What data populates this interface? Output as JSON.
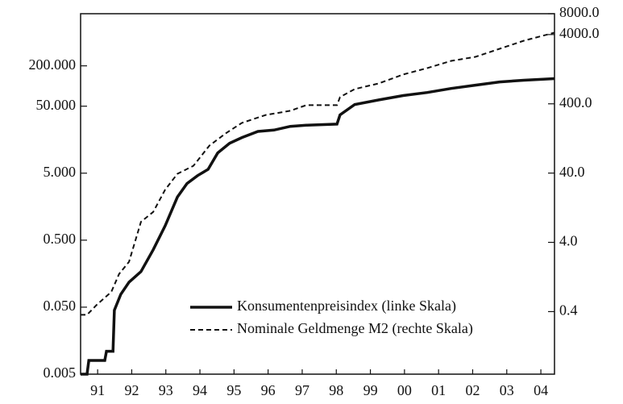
{
  "chart_data": {
    "type": "line",
    "yscale": "log",
    "y2scale": "log",
    "xlim": [
      1991,
      2004.9
    ],
    "xticks": [
      {
        "value": 1991.5,
        "label": "91"
      },
      {
        "value": 1992.5,
        "label": "92"
      },
      {
        "value": 1993.5,
        "label": "93"
      },
      {
        "value": 1994.5,
        "label": "94"
      },
      {
        "value": 1995.5,
        "label": "95"
      },
      {
        "value": 1996.5,
        "label": "96"
      },
      {
        "value": 1997.5,
        "label": "97"
      },
      {
        "value": 1998.5,
        "label": "98"
      },
      {
        "value": 1999.5,
        "label": "99"
      },
      {
        "value": 2000.5,
        "label": "00"
      },
      {
        "value": 2001.5,
        "label": "01"
      },
      {
        "value": 2002.5,
        "label": "02"
      },
      {
        "value": 2003.5,
        "label": "03"
      },
      {
        "value": 2004.5,
        "label": "04"
      }
    ],
    "ylim": [
      0.005,
      1200
    ],
    "yticks": [
      0.005,
      {
        "value": 0.05,
        "label": "0.050"
      },
      {
        "value": 0.5,
        "label": "0.500"
      },
      {
        "value": 5,
        "label": "5.000"
      },
      {
        "value": 50,
        "label": "50.000"
      },
      {
        "value": 200,
        "label": "200.000"
      }
    ],
    "y2lim": [
      0.05,
      8000
    ],
    "y2ticks": [
      0.4,
      {
        "value": 4,
        "label": "4.0"
      },
      {
        "value": 40,
        "label": "40.0"
      },
      {
        "value": 400,
        "label": "400.0"
      },
      {
        "value": 4000,
        "label": "4000.0"
      },
      {
        "value": 8000,
        "label": "8000.0"
      }
    ],
    "legend": "lower right",
    "series": [
      {
        "name": "Konsumentenpreisindex (linke Skala)",
        "color": "#111111",
        "style": "solid",
        "x": [
          1991.0,
          1991.19,
          1991.24,
          1991.71,
          1991.76,
          1991.95,
          1991.99,
          1992.18,
          1992.42,
          1992.77,
          1993.13,
          1993.48,
          1993.84,
          1994.12,
          1994.43,
          1994.74,
          1995.02,
          1995.37,
          1995.73,
          1996.2,
          1996.67,
          1997.15,
          1997.62,
          1998.52,
          1998.61,
          1999.04,
          1999.75,
          2000.46,
          2001.17,
          2001.87,
          2002.58,
          2003.29,
          2004.0,
          2004.9
        ],
        "values": [
          0.005,
          0.005,
          0.008,
          0.008,
          0.011,
          0.011,
          0.045,
          0.078,
          0.118,
          0.17,
          0.36,
          0.82,
          2.2,
          3.5,
          4.6,
          5.7,
          10,
          14,
          17,
          21,
          22,
          25,
          26,
          27,
          37,
          53,
          62,
          72,
          80,
          92,
          103,
          115,
          122,
          129
        ]
      },
      {
        "name": "Nominale Geldmenge M2 (rechte Skala)",
        "color": "#111111",
        "style": "dashed",
        "axis": "y2",
        "x": [
          1991.0,
          1991.19,
          1991.47,
          1991.9,
          1992.13,
          1992.42,
          1992.77,
          1993.13,
          1993.48,
          1993.84,
          1994.31,
          1994.78,
          1995.26,
          1995.73,
          1996.44,
          1997.15,
          1997.62,
          1998.52,
          1998.61,
          1999.04,
          1999.75,
          2000.46,
          2001.17,
          2001.87,
          2002.58,
          2003.29,
          2004.0,
          2004.9
        ],
        "values": [
          0.36,
          0.36,
          0.5,
          0.77,
          1.4,
          2.1,
          7.9,
          11,
          23,
          39,
          51,
          100,
          150,
          212,
          277,
          317,
          383,
          383,
          500,
          653,
          789,
          1059,
          1312,
          1668,
          1906,
          2494,
          3258,
          4258
        ]
      }
    ]
  }
}
